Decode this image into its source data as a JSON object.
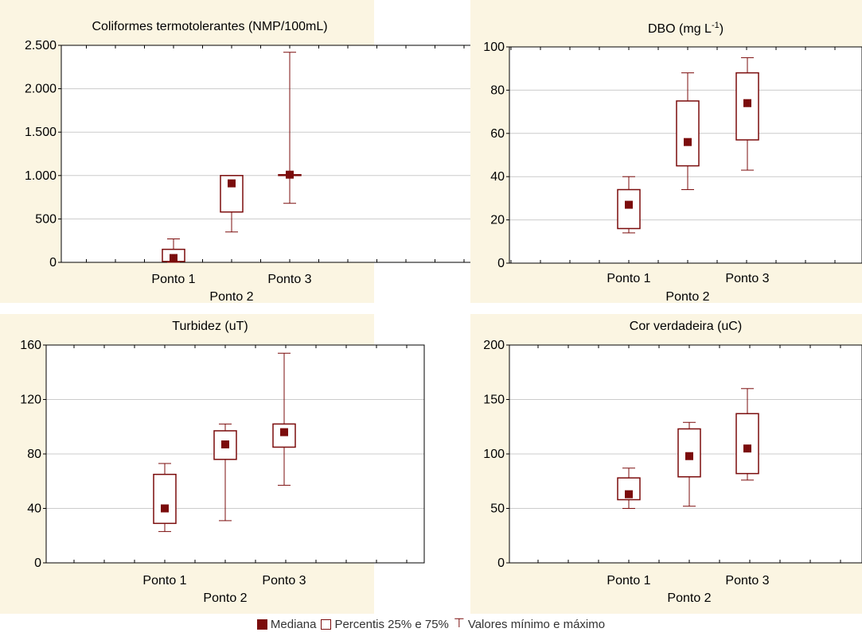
{
  "colors": {
    "mark": "#7b0c0c",
    "title_band": "#fbf5e2",
    "grid": "#cccccc"
  },
  "legend": {
    "median": "Mediana",
    "box": "Percentis 25% e 75%",
    "whisker": "Valores mínimo e máximo"
  },
  "chart_data": [
    {
      "type": "box",
      "title": "Coliformes termotolerantes (NMP/100mL)",
      "categories": [
        "Ponto 1",
        "Ponto 2",
        "Ponto 3"
      ],
      "ylim": [
        0,
        2500
      ],
      "yticks": [
        0,
        500,
        1000,
        1500,
        2000,
        2500
      ],
      "ytick_labels": [
        "0",
        "500",
        "1.000",
        "1.500",
        "2.000",
        "2.500"
      ],
      "grid": true,
      "boxes": [
        {
          "min": 0,
          "q1": 10,
          "median": 50,
          "q3": 150,
          "max": 270
        },
        {
          "min": 350,
          "q1": 580,
          "median": 910,
          "q3": 1000,
          "max": 1000
        },
        {
          "min": 680,
          "q1": 1000,
          "median": 1010,
          "q3": 1010,
          "max": 2420
        }
      ]
    },
    {
      "type": "box",
      "title": "DBO (mg L",
      "title_sup": "-1",
      "title_end": ")",
      "categories": [
        "Ponto 1",
        "Ponto 2",
        "Ponto 3"
      ],
      "ylim": [
        0,
        100
      ],
      "yticks": [
        0,
        20,
        40,
        60,
        80,
        100
      ],
      "ytick_labels": [
        "0",
        "20",
        "40",
        "60",
        "80",
        "100"
      ],
      "grid": true,
      "boxes": [
        {
          "min": 14,
          "q1": 16,
          "median": 27,
          "q3": 34,
          "max": 40
        },
        {
          "min": 34,
          "q1": 45,
          "median": 56,
          "q3": 75,
          "max": 88
        },
        {
          "min": 43,
          "q1": 57,
          "median": 74,
          "q3": 88,
          "max": 95
        }
      ]
    },
    {
      "type": "box",
      "title": "Turbidez (uT)",
      "categories": [
        "Ponto 1",
        "Ponto 2",
        "Ponto 3"
      ],
      "ylim": [
        0,
        160
      ],
      "yticks": [
        0,
        40,
        80,
        120,
        160
      ],
      "ytick_labels": [
        "0",
        "40",
        "80",
        "120",
        "160"
      ],
      "grid": true,
      "boxes": [
        {
          "min": 23,
          "q1": 29,
          "median": 40,
          "q3": 65,
          "max": 73
        },
        {
          "min": 31,
          "q1": 76,
          "median": 87,
          "q3": 97,
          "max": 102
        },
        {
          "min": 57,
          "q1": 85,
          "median": 96,
          "q3": 102,
          "max": 154
        }
      ]
    },
    {
      "type": "box",
      "title": "Cor verdadeira (uC)",
      "categories": [
        "Ponto 1",
        "Ponto 2",
        "Ponto 3"
      ],
      "ylim": [
        0,
        200
      ],
      "yticks": [
        0,
        50,
        100,
        150,
        200
      ],
      "ytick_labels": [
        "0",
        "50",
        "100",
        "150",
        "200"
      ],
      "grid": true,
      "boxes": [
        {
          "min": 50,
          "q1": 58,
          "median": 63,
          "q3": 78,
          "max": 87
        },
        {
          "min": 52,
          "q1": 79,
          "median": 98,
          "q3": 123,
          "max": 129
        },
        {
          "min": 76,
          "q1": 82,
          "median": 105,
          "q3": 137,
          "max": 160
        }
      ]
    }
  ]
}
